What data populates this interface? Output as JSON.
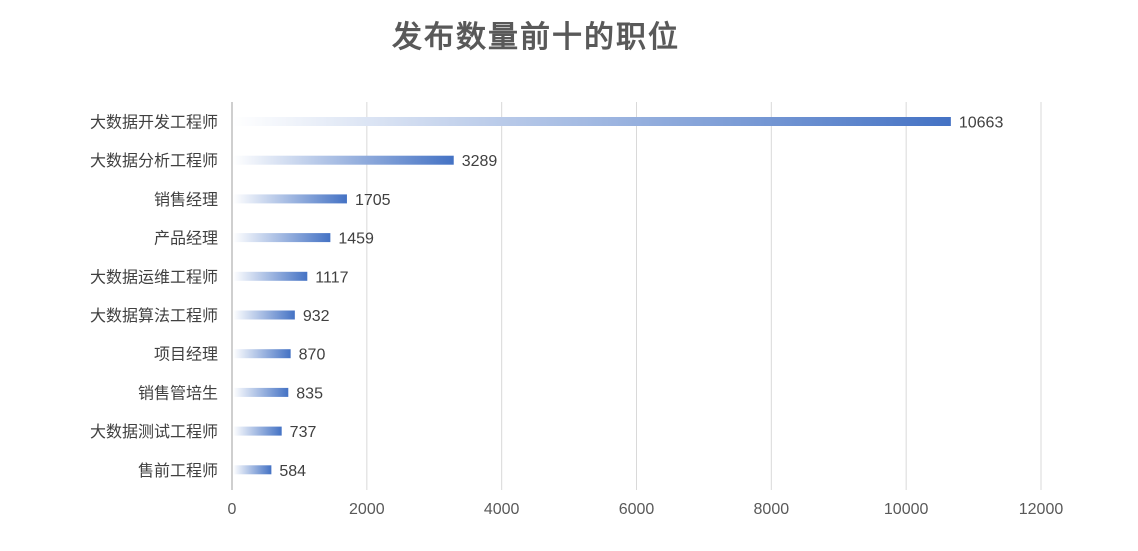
{
  "chart_data": {
    "type": "bar",
    "orientation": "horizontal",
    "title": "发布数量前十的职位",
    "categories": [
      "大数据开发工程师",
      "大数据分析工程师",
      "销售经理",
      "产品经理",
      "大数据运维工程师",
      "大数据算法工程师",
      "项目经理",
      "销售管培生",
      "大数据测试工程师",
      "售前工程师"
    ],
    "values": [
      10663,
      3289,
      1705,
      1459,
      1117,
      932,
      870,
      835,
      737,
      584
    ],
    "x_ticks": [
      "0",
      "2000",
      "4000",
      "6000",
      "8000",
      "10000",
      "12000"
    ],
    "xlim": [
      0,
      12000
    ],
    "xlabel": "",
    "ylabel": "",
    "grid": true,
    "legend": "none",
    "bar_color_start": "#ffffff",
    "bar_color_end": "#4472c4",
    "gridline_color": "#d9d9d9"
  }
}
